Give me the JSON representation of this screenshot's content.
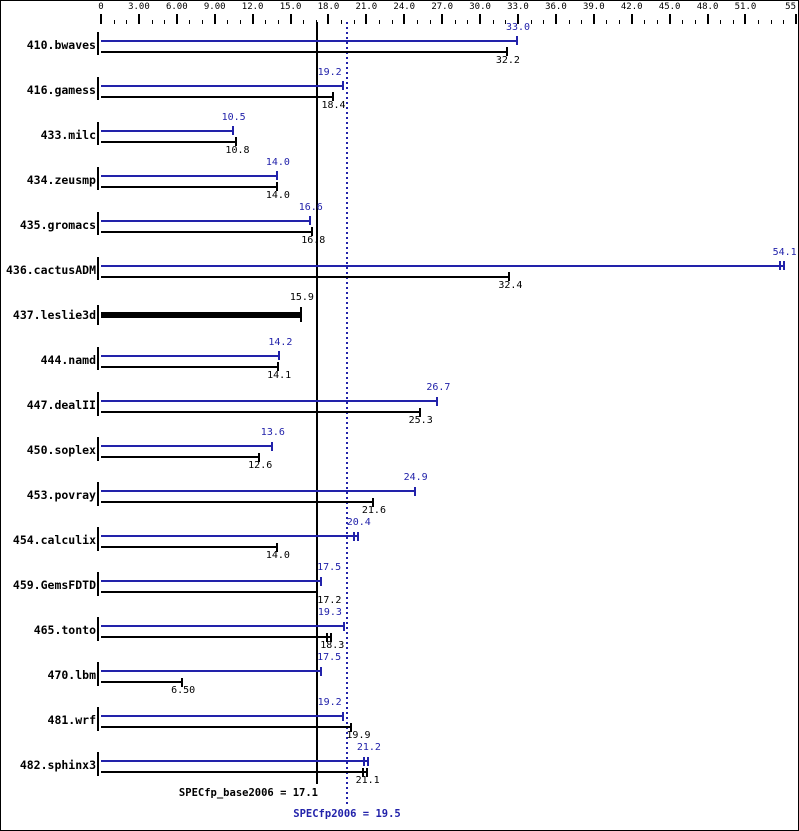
{
  "chart_data": {
    "type": "bar",
    "orientation": "horizontal",
    "title": "",
    "xlabel": "",
    "ylabel": "",
    "xlim": [
      0,
      55
    ],
    "grid": false,
    "legend": "none",
    "x_axis_major_ticks": [
      {
        "value": 0,
        "label": "0"
      },
      {
        "value": 3,
        "label": "3.00"
      },
      {
        "value": 6,
        "label": "6.00"
      },
      {
        "value": 9,
        "label": "9.00"
      },
      {
        "value": 12,
        "label": "12.0"
      },
      {
        "value": 15,
        "label": "15.0"
      },
      {
        "value": 18,
        "label": "18.0"
      },
      {
        "value": 21,
        "label": "21.0"
      },
      {
        "value": 24,
        "label": "24.0"
      },
      {
        "value": 27,
        "label": "27.0"
      },
      {
        "value": 30,
        "label": "30.0"
      },
      {
        "value": 33,
        "label": "33.0"
      },
      {
        "value": 36,
        "label": "36.0"
      },
      {
        "value": 39,
        "label": "39.0"
      },
      {
        "value": 42,
        "label": "42.0"
      },
      {
        "value": 45,
        "label": "45.0"
      },
      {
        "value": 48,
        "label": "48.0"
      },
      {
        "value": 51,
        "label": "51.0"
      },
      {
        "value": 55,
        "label": "55.0"
      }
    ],
    "x_axis_minor_tick_step": 1,
    "series_meta": [
      {
        "key": "peak",
        "name": "SPECfp2006 (peak)",
        "color": "#2222aa"
      },
      {
        "key": "base",
        "name": "SPECfp_base2006 (base)",
        "color": "#000000"
      }
    ],
    "benchmarks": [
      {
        "name": "410.bwaves",
        "peak": 33.0,
        "peak_label": "33.0",
        "base": 32.2,
        "base_label": "32.2"
      },
      {
        "name": "416.gamess",
        "peak": 19.2,
        "peak_label": "19.2",
        "base": 18.4,
        "base_label": "18.4",
        "peak_label_dx": -14
      },
      {
        "name": "433.milc",
        "peak": 10.5,
        "peak_label": "10.5",
        "base": 10.8,
        "base_label": "10.8"
      },
      {
        "name": "434.zeusmp",
        "peak": 14.0,
        "peak_label": "14.0",
        "base": 14.0,
        "base_label": "14.0"
      },
      {
        "name": "435.gromacs",
        "peak": 16.6,
        "peak_label": "16.6",
        "base": 16.8,
        "base_label": "16.8"
      },
      {
        "name": "436.cactusADM",
        "peak": 54.1,
        "peak_label": "54.1",
        "base": 32.4,
        "base_label": "32.4",
        "peak_double_tick": true
      },
      {
        "name": "437.leslie3d",
        "peak": null,
        "single_thick_bar": true,
        "base": 15.9,
        "base_label": "15.9"
      },
      {
        "name": "444.namd",
        "peak": 14.2,
        "peak_label": "14.2",
        "base": 14.1,
        "base_label": "14.1"
      },
      {
        "name": "447.dealII",
        "peak": 26.7,
        "peak_label": "26.7",
        "base": 25.3,
        "base_label": "25.3"
      },
      {
        "name": "450.soplex",
        "peak": 13.6,
        "peak_label": "13.6",
        "base": 12.6,
        "base_label": "12.6"
      },
      {
        "name": "453.povray",
        "peak": 24.9,
        "peak_label": "24.9",
        "base": 21.6,
        "base_label": "21.6"
      },
      {
        "name": "454.calculix",
        "peak": 20.4,
        "peak_label": "20.4",
        "base": 14.0,
        "base_label": "14.0",
        "peak_double_tick": true
      },
      {
        "name": "459.GemsFDTD",
        "peak": 17.5,
        "peak_label": "17.5",
        "base": 17.2,
        "base_label": "17.2",
        "peak_label_dx": 7,
        "base_label_dx": 11
      },
      {
        "name": "465.tonto",
        "peak": 19.3,
        "peak_label": "19.3",
        "base": 18.3,
        "base_label": "18.3",
        "peak_label_dx": -15,
        "base_double_tick": true
      },
      {
        "name": "470.lbm",
        "peak": 17.5,
        "peak_label": "17.5",
        "base": 6.5,
        "base_label": "6.50",
        "peak_label_dx": 7
      },
      {
        "name": "481.wrf",
        "peak": 19.2,
        "peak_label": "19.2",
        "base": 19.9,
        "base_label": "19.9",
        "peak_label_dx": -14,
        "base_label_dx": 6
      },
      {
        "name": "482.sphinx3",
        "peak": 21.2,
        "peak_label": "21.2",
        "base": 21.1,
        "base_label": "21.1",
        "peak_double_tick": true,
        "base_double_tick": true
      }
    ],
    "reference_lines": [
      {
        "key": "base_mean",
        "label": "SPECfp_base2006 = 17.1",
        "value": 17.1,
        "style": "solid",
        "color": "#000000"
      },
      {
        "key": "peak_mean",
        "label": "SPECfp2006 = 19.5",
        "value": 19.5,
        "style": "dotted",
        "color": "#2222aa"
      }
    ],
    "colors": {
      "peak": "#2222aa",
      "base": "#000000",
      "background": "#ffffff",
      "border": "#000000"
    }
  },
  "footer": {
    "base_label": "SPECfp_base2006 = 17.1",
    "peak_label": "SPECfp2006 = 19.5"
  }
}
